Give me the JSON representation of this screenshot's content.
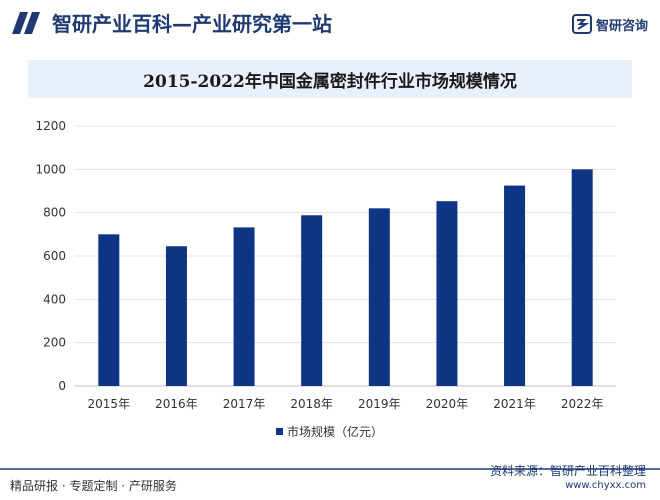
{
  "header": {
    "site_title": "智研产业百科—产业研究第一站",
    "logo_text": "智研咨询"
  },
  "chart_data": {
    "type": "bar",
    "title": "2015-2022年中国金属密封件行业市场规模情况",
    "categories": [
      "2015年",
      "2016年",
      "2017年",
      "2018年",
      "2019年",
      "2020年",
      "2021年",
      "2022年"
    ],
    "series": [
      {
        "name": "市场规模（亿元）",
        "values": [
          700,
          645,
          732,
          788,
          820,
          853,
          925,
          1000
        ]
      }
    ],
    "ylim": [
      0,
      1200
    ],
    "yticks": [
      0,
      200,
      400,
      600,
      800,
      1000,
      1200
    ],
    "grid": true,
    "legend_position": "bottom",
    "colors": {
      "bar": "#0d3584"
    }
  },
  "footer": {
    "left_text": "精品研报 · 专题定制 · 产研服务",
    "source_text": "资料来源：智研产业百科整理",
    "url_text": "www.chyxx.com"
  },
  "colors": {
    "brand": "#1f3a73",
    "title_bg": "#e9f0fb"
  }
}
